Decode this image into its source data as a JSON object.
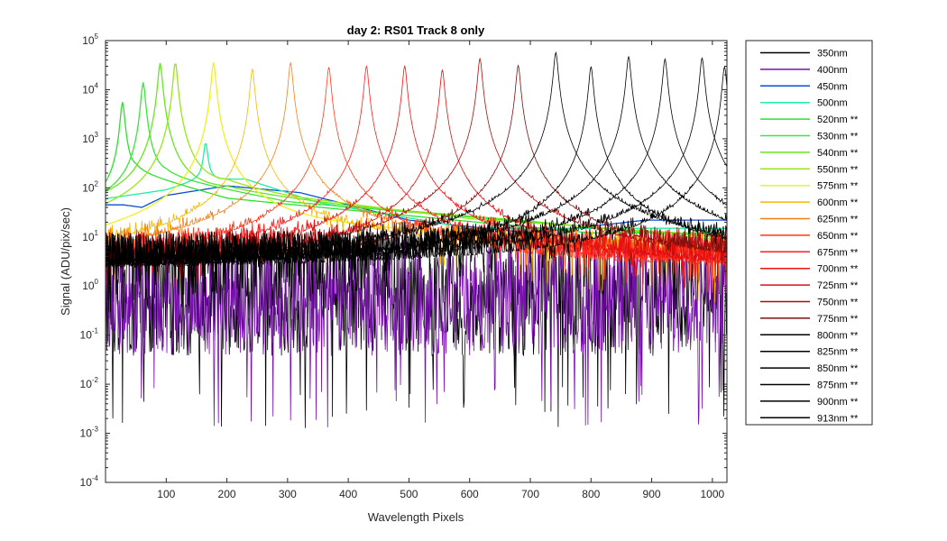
{
  "chart_data": {
    "type": "line",
    "title": "day 2: RS01   Track 8 only",
    "xlabel": "Wavelength Pixels",
    "ylabel": "Signal (ADU/pix/sec)",
    "xlim": [
      0,
      1024
    ],
    "ylim": [
      0.0001,
      100000
    ],
    "yscale": "log",
    "grid": false,
    "legend_position": "outside-right",
    "x_ticks": [
      100,
      200,
      300,
      400,
      500,
      600,
      700,
      800,
      900,
      1000
    ],
    "y_ticks": [
      {
        "value": 0.0001,
        "base": "10",
        "exp": "-4"
      },
      {
        "value": 0.001,
        "base": "10",
        "exp": "-3"
      },
      {
        "value": 0.01,
        "base": "10",
        "exp": "-2"
      },
      {
        "value": 0.1,
        "base": "10",
        "exp": "-1"
      },
      {
        "value": 1,
        "base": "10",
        "exp": "0"
      },
      {
        "value": 10,
        "base": "10",
        "exp": "1"
      },
      {
        "value": 100,
        "base": "10",
        "exp": "2"
      },
      {
        "value": 1000,
        "base": "10",
        "exp": "3"
      },
      {
        "value": 10000,
        "base": "10",
        "exp": "4"
      },
      {
        "value": 100000,
        "base": "10",
        "exp": "5"
      }
    ],
    "series": [
      {
        "name": "350nm",
        "color": "#000000",
        "peak_x": null,
        "peak_y": null,
        "broad": [],
        "noise": 0.9
      },
      {
        "name": "400nm",
        "color": "#7a0fb0",
        "peak_x": null,
        "peak_y": null,
        "broad": [],
        "noise": 0.4
      },
      {
        "name": "450nm",
        "color": "#0a4fd0",
        "peak_x": null,
        "peak_y": null,
        "broad": [
          [
            30,
            45
          ],
          [
            60,
            40
          ],
          [
            100,
            70
          ],
          [
            200,
            110
          ],
          [
            320,
            80
          ],
          [
            500,
            22
          ],
          [
            700,
            12
          ],
          [
            890,
            22
          ]
        ],
        "noise": 0
      },
      {
        "name": "500nm",
        "color": "#1ef0a0",
        "peak_x": 165,
        "peak_y": 700,
        "broad": [
          [
            0,
            60
          ],
          [
            100,
            90
          ],
          [
            150,
            140
          ],
          [
            230,
            150
          ],
          [
            350,
            50
          ],
          [
            600,
            15
          ]
        ],
        "noise": 0
      },
      {
        "name": "520nm **",
        "color": "#2ee02e",
        "peak_x": 28,
        "peak_y": 5500,
        "broad": [
          [
            0,
            60
          ],
          [
            50,
            200
          ],
          [
            200,
            60
          ],
          [
            400,
            35
          ],
          [
            800,
            12
          ]
        ],
        "noise": 0
      },
      {
        "name": "530nm **",
        "color": "#3ae63a",
        "peak_x": 62,
        "peak_y": 14000,
        "broad": [
          [
            0,
            50
          ],
          [
            100,
            150
          ],
          [
            300,
            50
          ],
          [
            600,
            25
          ],
          [
            1000,
            10
          ]
        ],
        "noise": 0
      },
      {
        "name": "540nm **",
        "color": "#66e81f",
        "peak_x": 90,
        "peak_y": 35000,
        "broad": [
          [
            0,
            40
          ],
          [
            200,
            80
          ],
          [
            400,
            40
          ],
          [
            700,
            20
          ],
          [
            1024,
            8
          ]
        ],
        "noise": 0
      },
      {
        "name": "550nm **",
        "color": "#9ae61a",
        "peak_x": 115,
        "peak_y": 36000,
        "broad": [
          [
            0,
            20
          ],
          [
            200,
            100
          ],
          [
            300,
            60
          ],
          [
            600,
            22
          ],
          [
            1024,
            10
          ]
        ],
        "noise": 0
      },
      {
        "name": "575nm **",
        "color": "#f0f020",
        "peak_x": 178,
        "peak_y": 36000,
        "broad": [
          [
            0,
            6
          ],
          [
            200,
            15
          ],
          [
            400,
            12
          ],
          [
            800,
            8
          ],
          [
            1024,
            6
          ]
        ],
        "noise": 0
      },
      {
        "name": "600nm **",
        "color": "#f5b800",
        "peak_x": 242,
        "peak_y": 26000,
        "broad": [
          [
            0,
            4
          ],
          [
            300,
            10
          ],
          [
            600,
            6
          ],
          [
            1024,
            4
          ]
        ],
        "noise": 0.6
      },
      {
        "name": "625nm **",
        "color": "#f57f17",
        "peak_x": 305,
        "peak_y": 35000,
        "broad": [
          [
            0,
            3
          ],
          [
            400,
            8
          ],
          [
            1024,
            3
          ]
        ],
        "noise": 0.6
      },
      {
        "name": "650nm **",
        "color": "#ff3a1a",
        "peak_x": 368,
        "peak_y": 28000,
        "broad": [
          [
            0,
            2
          ],
          [
            1024,
            2
          ]
        ],
        "noise": 0.8
      },
      {
        "name": "675nm **",
        "color": "#ff1f1f",
        "peak_x": 430,
        "peak_y": 30000,
        "broad": [
          [
            0,
            2
          ],
          [
            1024,
            2
          ]
        ],
        "noise": 0.8
      },
      {
        "name": "700nm **",
        "color": "#f21010",
        "peak_x": 493,
        "peak_y": 30000,
        "broad": [
          [
            0,
            2
          ],
          [
            1024,
            2
          ]
        ],
        "noise": 0.8
      },
      {
        "name": "725nm **",
        "color": "#dd1010",
        "peak_x": 555,
        "peak_y": 25000,
        "broad": [
          [
            0,
            2
          ],
          [
            1024,
            2
          ]
        ],
        "noise": 0.8
      },
      {
        "name": "750nm **",
        "color": "#b00a0a",
        "peak_x": 617,
        "peak_y": 43000,
        "broad": [
          [
            0,
            2
          ],
          [
            1024,
            2
          ]
        ],
        "noise": 0.8
      },
      {
        "name": "775nm **",
        "color": "#7a1010",
        "peak_x": 680,
        "peak_y": 31000,
        "broad": [
          [
            0,
            2
          ],
          [
            1024,
            2
          ]
        ],
        "noise": 0.8
      },
      {
        "name": "800nm **",
        "color": "#000000",
        "peak_x": 742,
        "peak_y": 57000,
        "broad": [
          [
            0,
            2
          ],
          [
            1024,
            3
          ]
        ],
        "noise": 0.9
      },
      {
        "name": "825nm **",
        "color": "#000000",
        "peak_x": 800,
        "peak_y": 29000,
        "broad": [
          [
            0,
            2
          ],
          [
            1024,
            3
          ]
        ],
        "noise": 0.9
      },
      {
        "name": "850nm **",
        "color": "#000000",
        "peak_x": 862,
        "peak_y": 47000,
        "broad": [
          [
            0,
            2
          ],
          [
            1024,
            3
          ]
        ],
        "noise": 0.9
      },
      {
        "name": "875nm **",
        "color": "#000000",
        "peak_x": 922,
        "peak_y": 42000,
        "broad": [
          [
            0,
            2
          ],
          [
            1024,
            3
          ]
        ],
        "noise": 0.9
      },
      {
        "name": "900nm **",
        "color": "#000000",
        "peak_x": 983,
        "peak_y": 44000,
        "broad": [
          [
            0,
            2
          ],
          [
            1024,
            3
          ]
        ],
        "noise": 0.9
      },
      {
        "name": "913nm **",
        "color": "#000000",
        "peak_x": 1020,
        "peak_y": 29000,
        "broad": [
          [
            0,
            2
          ],
          [
            1024,
            3
          ]
        ],
        "noise": 0.9
      }
    ]
  }
}
